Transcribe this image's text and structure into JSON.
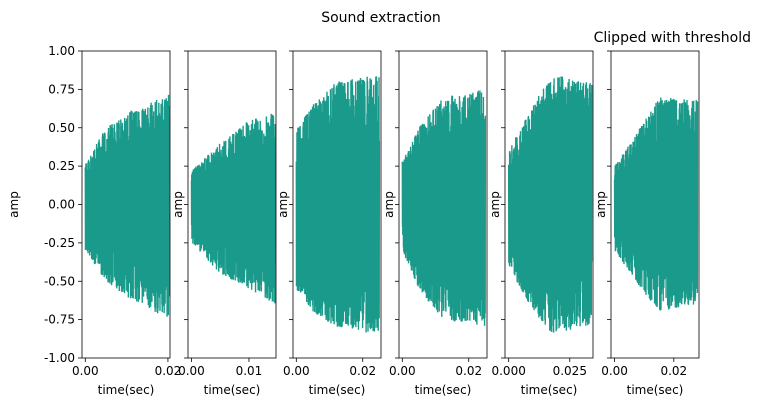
{
  "figure": {
    "suptitle": "Sound extraction",
    "last_title": "Clipped with threshold"
  },
  "chart_data": {
    "type": "line",
    "shared_y": true,
    "ylabel": "amp",
    "xlabel": "time(sec)",
    "ylim": [
      -1.0,
      1.0
    ],
    "yticks": [
      -1.0,
      -0.75,
      -0.5,
      -0.25,
      0.0,
      0.25,
      0.5,
      0.75,
      1.0
    ],
    "ytick_labels": [
      "-1.00",
      "-0.75",
      "-0.50",
      "-0.25",
      "0.00",
      "0.25",
      "0.50",
      "0.75",
      "1.00"
    ],
    "line_color": "#1a9a8a",
    "panels": [
      {
        "xlim": [
          -0.0008,
          0.0205
        ],
        "xticks": [
          0.0,
          0.02
        ],
        "xtick_labels": [
          "0.00",
          "0.02"
        ],
        "duration": 0.0203,
        "envelope": {
          "x": [
            0.0,
            0.005,
            0.01,
            0.0203
          ],
          "upper": [
            0.28,
            0.5,
            0.6,
            0.72
          ],
          "lower": [
            -0.3,
            -0.5,
            -0.6,
            -0.75
          ]
        }
      },
      {
        "xlim": [
          -0.0006,
          0.0147
        ],
        "xticks": [
          0.0,
          0.01
        ],
        "xtick_labels": [
          "0.00",
          "0.01"
        ],
        "duration": 0.0146,
        "envelope": {
          "x": [
            0.0,
            0.005,
            0.01,
            0.0146
          ],
          "upper": [
            0.22,
            0.4,
            0.55,
            0.6
          ],
          "lower": [
            -0.25,
            -0.45,
            -0.55,
            -0.65
          ]
        }
      },
      {
        "xlim": [
          -0.001,
          0.0255
        ],
        "xticks": [
          0.0,
          0.02
        ],
        "xtick_labels": [
          "0.00",
          "0.02"
        ],
        "duration": 0.025,
        "envelope": {
          "x": [
            0.0,
            0.005,
            0.012,
            0.025
          ],
          "upper": [
            0.5,
            0.65,
            0.8,
            0.85
          ],
          "lower": [
            -0.55,
            -0.7,
            -0.8,
            -0.85
          ]
        }
      },
      {
        "xlim": [
          -0.001,
          0.0255
        ],
        "xticks": [
          0.0,
          0.02
        ],
        "xtick_labels": [
          "0.00",
          "0.02"
        ],
        "duration": 0.025,
        "envelope": {
          "x": [
            0.0,
            0.005,
            0.012,
            0.025
          ],
          "upper": [
            0.28,
            0.5,
            0.7,
            0.75
          ],
          "lower": [
            -0.3,
            -0.55,
            -0.75,
            -0.8
          ]
        }
      },
      {
        "xlim": [
          -0.0015,
          0.0345
        ],
        "xticks": [
          0.0,
          0.025
        ],
        "xtick_labels": [
          "0.000",
          "0.025"
        ],
        "duration": 0.034,
        "envelope": {
          "x": [
            0.0,
            0.008,
            0.018,
            0.034
          ],
          "upper": [
            0.35,
            0.6,
            0.85,
            0.8
          ],
          "lower": [
            -0.4,
            -0.65,
            -0.85,
            -0.78
          ]
        }
      },
      {
        "xlim": [
          -0.0012,
          0.0285
        ],
        "xticks": [
          0.0,
          0.02
        ],
        "xtick_labels": [
          "0.00",
          "0.02"
        ],
        "duration": 0.028,
        "envelope": {
          "x": [
            0.0,
            0.007,
            0.015,
            0.028
          ],
          "upper": [
            0.25,
            0.45,
            0.7,
            0.68
          ],
          "lower": [
            -0.3,
            -0.5,
            -0.7,
            -0.65
          ]
        }
      }
    ]
  }
}
